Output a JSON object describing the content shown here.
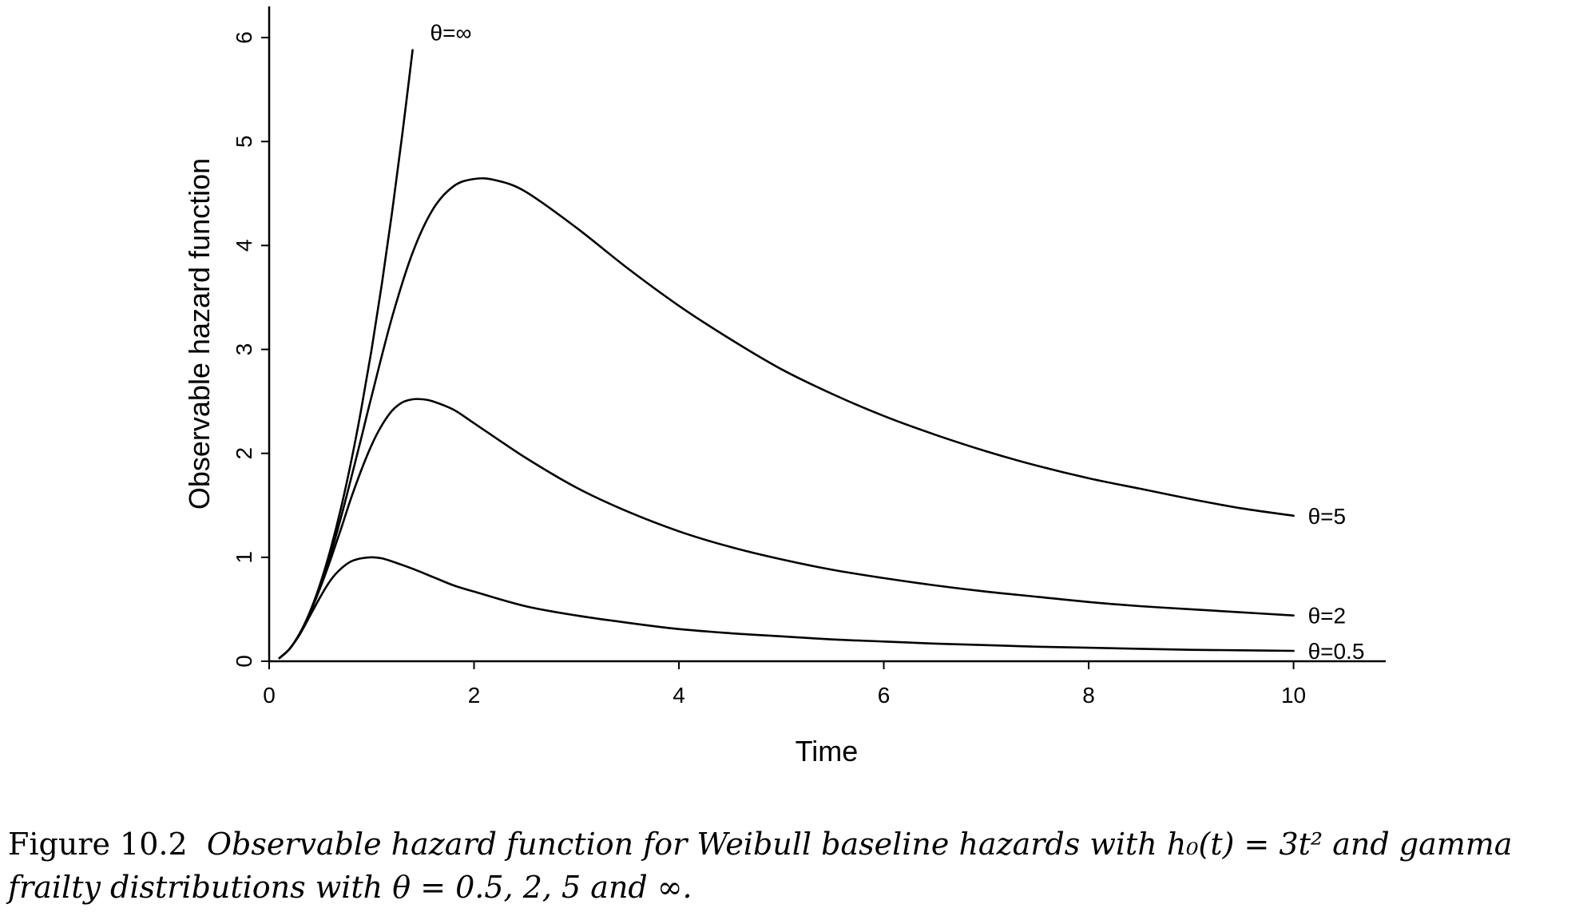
{
  "chart_data": {
    "type": "line",
    "title": "",
    "xlabel": "Time",
    "ylabel": "Observable hazard function",
    "xlim": [
      0,
      10.9
    ],
    "ylim": [
      0,
      6.3
    ],
    "xticks": [
      "0",
      "2",
      "4",
      "6",
      "8",
      "10"
    ],
    "yticks": [
      "0",
      "1",
      "2",
      "3",
      "4",
      "5",
      "6"
    ],
    "grid": false,
    "legend": "none",
    "line_color": "#000000",
    "series": [
      {
        "label": "θ=∞",
        "x": [
          0.1,
          0.2,
          0.3,
          0.4,
          0.5,
          0.6,
          0.7,
          0.8,
          0.9,
          1.0,
          1.1,
          1.2,
          1.3,
          1.4
        ],
        "y": [
          0.03,
          0.12,
          0.27,
          0.48,
          0.75,
          1.08,
          1.47,
          1.92,
          2.43,
          3.0,
          3.63,
          4.32,
          5.07,
          5.88
        ]
      },
      {
        "label": "θ=5",
        "x": [
          0.1,
          0.2,
          0.3,
          0.4,
          0.5,
          0.6,
          0.7,
          0.8,
          0.9,
          1.0,
          1.2,
          1.4,
          1.6,
          1.8,
          2.0,
          2.2,
          2.5,
          3.0,
          3.5,
          4.0,
          4.5,
          5.0,
          5.5,
          6.0,
          6.5,
          7.0,
          7.5,
          8.0,
          8.5,
          9.0,
          9.5,
          10.0
        ],
        "y": [
          0.03,
          0.12,
          0.27,
          0.47,
          0.73,
          1.03,
          1.38,
          1.76,
          2.15,
          2.55,
          3.31,
          3.93,
          4.35,
          4.57,
          4.64,
          4.63,
          4.52,
          4.17,
          3.78,
          3.42,
          3.1,
          2.81,
          2.57,
          2.36,
          2.18,
          2.02,
          1.88,
          1.76,
          1.66,
          1.56,
          1.47,
          1.4
        ]
      },
      {
        "label": "θ=2",
        "x": [
          0.1,
          0.2,
          0.3,
          0.4,
          0.5,
          0.6,
          0.7,
          0.8,
          0.9,
          1.0,
          1.1,
          1.2,
          1.3,
          1.4,
          1.5,
          1.6,
          1.8,
          2.0,
          2.5,
          3.0,
          3.5,
          4.0,
          4.5,
          5.0,
          5.5,
          6.0,
          6.5,
          7.0,
          7.5,
          8.0,
          8.5,
          9.0,
          9.5,
          10.0
        ],
        "y": [
          0.03,
          0.12,
          0.27,
          0.47,
          0.71,
          0.98,
          1.27,
          1.57,
          1.84,
          2.08,
          2.27,
          2.41,
          2.49,
          2.52,
          2.52,
          2.5,
          2.42,
          2.29,
          1.96,
          1.67,
          1.44,
          1.25,
          1.1,
          0.98,
          0.88,
          0.8,
          0.73,
          0.67,
          0.62,
          0.57,
          0.53,
          0.5,
          0.47,
          0.44
        ]
      },
      {
        "label": "θ=0.5",
        "x": [
          0.1,
          0.2,
          0.3,
          0.4,
          0.5,
          0.6,
          0.7,
          0.8,
          0.9,
          1.0,
          1.1,
          1.2,
          1.4,
          1.6,
          1.8,
          2.0,
          2.5,
          3.0,
          3.5,
          4.0,
          4.5,
          5.0,
          5.5,
          6.0,
          6.5,
          7.0,
          7.5,
          8.0,
          8.5,
          9.0,
          9.5,
          10.0
        ],
        "y": [
          0.03,
          0.12,
          0.26,
          0.44,
          0.62,
          0.78,
          0.89,
          0.96,
          0.99,
          1.0,
          0.99,
          0.96,
          0.89,
          0.81,
          0.73,
          0.67,
          0.53,
          0.44,
          0.37,
          0.31,
          0.27,
          0.24,
          0.21,
          0.19,
          0.17,
          0.155,
          0.14,
          0.13,
          0.12,
          0.11,
          0.105,
          0.1
        ]
      }
    ]
  },
  "caption": {
    "label": "Figure 10.2",
    "text": "Observable hazard function for Weibull baseline hazards with h₀(t) = 3t² and gamma frailty distributions with θ = 0.5, 2, 5 and ∞."
  }
}
